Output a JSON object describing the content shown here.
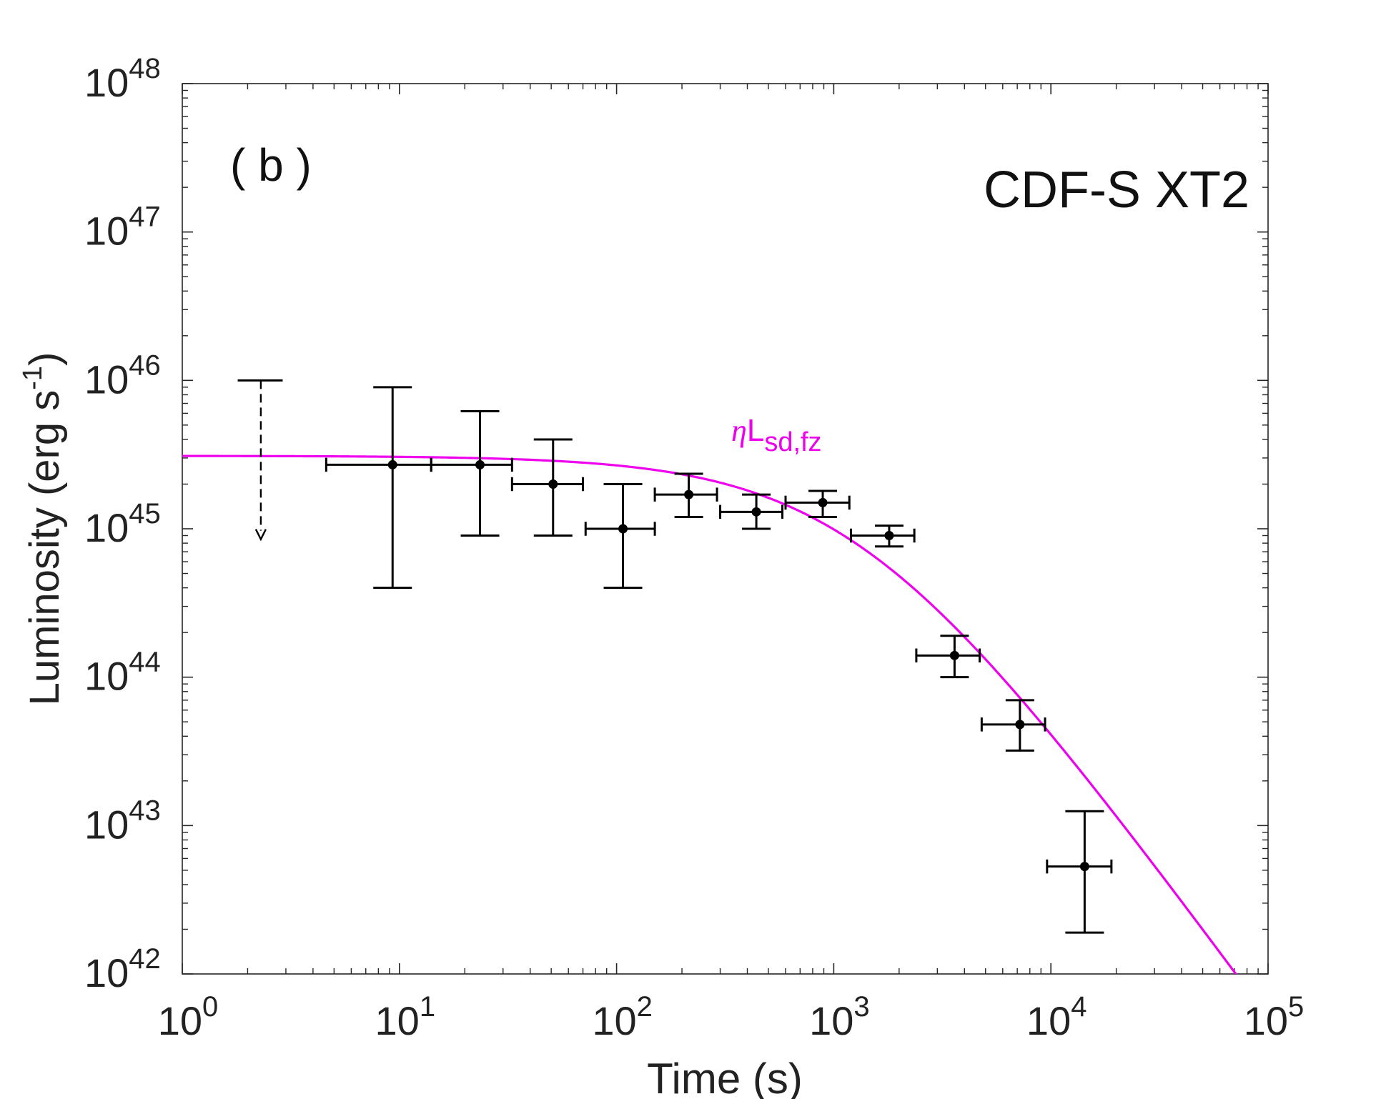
{
  "chart_data": {
    "type": "scatter",
    "panel_label": "( b )",
    "title": "CDF-S XT2",
    "xlabel": "Time (s)",
    "ylabel_main": "Luminosity (erg s",
    "ylabel_sup": "-1",
    "ylabel_close": ")",
    "x_scale": "log",
    "y_scale": "log",
    "xlim": [
      1,
      100000
    ],
    "ylim": [
      1e+42,
      1e+48
    ],
    "x_ticks": [
      {
        "value": 1,
        "base": "10",
        "exp": "0"
      },
      {
        "value": 10,
        "base": "10",
        "exp": "1"
      },
      {
        "value": 100,
        "base": "10",
        "exp": "2"
      },
      {
        "value": 1000,
        "base": "10",
        "exp": "3"
      },
      {
        "value": 10000,
        "base": "10",
        "exp": "4"
      },
      {
        "value": 100000,
        "base": "10",
        "exp": "5"
      }
    ],
    "y_ticks": [
      {
        "value": 1e+42,
        "base": "10",
        "exp": "42"
      },
      {
        "value": 1e+43,
        "base": "10",
        "exp": "43"
      },
      {
        "value": 1e+44,
        "base": "10",
        "exp": "44"
      },
      {
        "value": 1e+45,
        "base": "10",
        "exp": "45"
      },
      {
        "value": 1e+46,
        "base": "10",
        "exp": "46"
      },
      {
        "value": 1e+47,
        "base": "10",
        "exp": "47"
      },
      {
        "value": 1e+48,
        "base": "10",
        "exp": "48"
      }
    ],
    "upper_limit": {
      "x": 2.3,
      "x_lo": 1.8,
      "x_hi": 2.9,
      "y": 1e+46,
      "y_arrow_to": 8.5e+44
    },
    "points": [
      {
        "x": 9.3,
        "x_lo": 4.6,
        "x_hi": 14.0,
        "y": 2.7e+45,
        "y_lo": 4e+44,
        "y_hi": 9e+45
      },
      {
        "x": 23.5,
        "x_lo": 14.0,
        "x_hi": 33.0,
        "y": 2.7e+45,
        "y_lo": 9e+44,
        "y_hi": 6.2e+45
      },
      {
        "x": 51.0,
        "x_lo": 33.0,
        "x_hi": 70.0,
        "y": 2e+45,
        "y_lo": 9e+44,
        "y_hi": 4e+45
      },
      {
        "x": 107.0,
        "x_lo": 72.0,
        "x_hi": 150.0,
        "y": 1e+45,
        "y_lo": 4e+44,
        "y_hi": 2e+45
      },
      {
        "x": 215.0,
        "x_lo": 150.0,
        "x_hi": 290.0,
        "y": 1.7e+45,
        "y_lo": 1.2e+45,
        "y_hi": 2.35e+45
      },
      {
        "x": 440.0,
        "x_lo": 300.0,
        "x_hi": 580.0,
        "y": 1.3e+45,
        "y_lo": 1e+45,
        "y_hi": 1.7e+45
      },
      {
        "x": 890.0,
        "x_lo": 600.0,
        "x_hi": 1180.0,
        "y": 1.5e+45,
        "y_lo": 1.2e+45,
        "y_hi": 1.8e+45
      },
      {
        "x": 1800.0,
        "x_lo": 1200.0,
        "x_hi": 2350.0,
        "y": 9e+44,
        "y_lo": 7.6e+44,
        "y_hi": 1.05e+45
      },
      {
        "x": 3600.0,
        "x_lo": 2400.0,
        "x_hi": 4700.0,
        "y": 1.4e+44,
        "y_lo": 1e+44,
        "y_hi": 1.9e+44
      },
      {
        "x": 7200.0,
        "x_lo": 4800.0,
        "x_hi": 9400.0,
        "y": 4.8e+43,
        "y_lo": 3.2e+43,
        "y_hi": 7e+43
      },
      {
        "x": 14300.0,
        "x_lo": 9600.0,
        "x_hi": 19000.0,
        "y": 5.3e+42,
        "y_lo": 1.9e+42,
        "y_hi": 1.25e+43
      }
    ],
    "model": {
      "name_symbol": "η",
      "name_main": "L",
      "name_sub": "sd,fz",
      "color": "#ee00ee",
      "L0": 3.1e+45,
      "t_break": 1300,
      "x_range": [
        1,
        100000
      ]
    },
    "data_color": "#000000"
  }
}
